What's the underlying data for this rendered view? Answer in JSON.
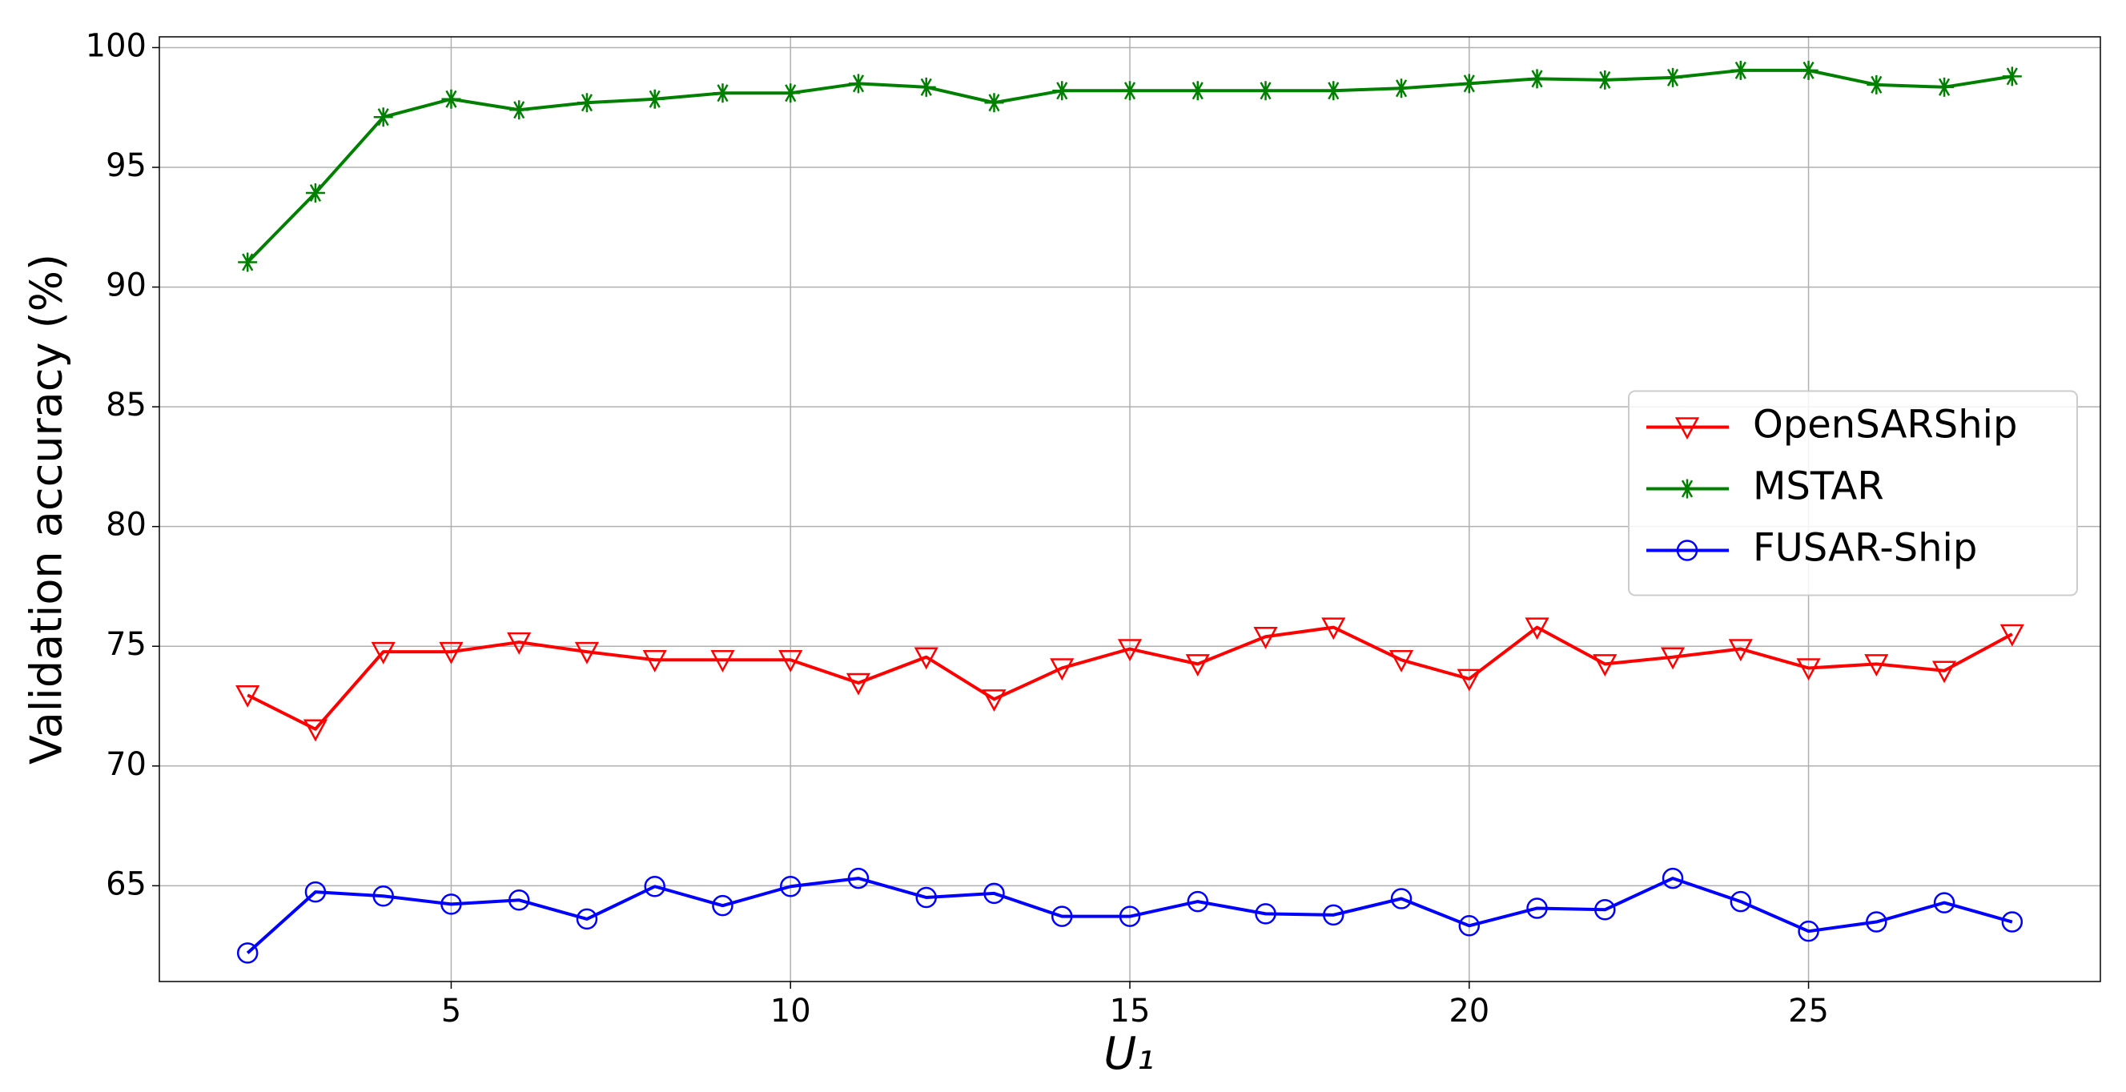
{
  "chart_data": {
    "type": "line",
    "x_label": "U₁",
    "y_label": "Validation accuracy (%)",
    "x": [
      2,
      3,
      4,
      5,
      6,
      7,
      8,
      9,
      10,
      11,
      12,
      13,
      14,
      15,
      16,
      17,
      18,
      19,
      20,
      21,
      22,
      23,
      24,
      25,
      26,
      27,
      28
    ],
    "series": [
      {
        "name": "OpenSARShip",
        "color": "#ff0000",
        "marker": "v",
        "values": [
          72.96,
          71.54,
          74.77,
          74.77,
          75.17,
          74.77,
          74.43,
          74.43,
          74.43,
          73.47,
          74.55,
          72.79,
          74.09,
          74.89,
          74.26,
          75.4,
          75.79,
          74.43,
          73.64,
          75.79,
          74.26,
          74.55,
          74.89,
          74.09,
          74.26,
          73.98,
          75.51
        ]
      },
      {
        "name": "MSTAR",
        "color": "#008000",
        "marker": "*",
        "values": [
          91.04,
          93.93,
          97.1,
          97.85,
          97.4,
          97.7,
          97.85,
          98.1,
          98.1,
          98.5,
          98.35,
          97.7,
          98.2,
          98.2,
          98.2,
          98.2,
          98.2,
          98.3,
          98.5,
          98.7,
          98.65,
          98.75,
          99.05,
          99.05,
          98.45,
          98.35,
          98.8
        ]
      },
      {
        "name": "FUSAR-Ship",
        "color": "#0000ff",
        "marker": "o",
        "values": [
          62.19,
          64.74,
          64.57,
          64.23,
          64.4,
          63.61,
          64.97,
          64.17,
          64.97,
          65.31,
          64.51,
          64.68,
          63.72,
          63.72,
          64.34,
          63.83,
          63.78,
          64.46,
          63.33,
          64.06,
          64.0,
          65.31,
          64.34,
          63.1,
          63.49,
          64.29,
          63.49
        ]
      }
    ],
    "xlim": [
      0.7,
      29.3
    ],
    "xticks": [
      5,
      10,
      15,
      20,
      25
    ],
    "ylim": [
      61.0,
      100.45
    ],
    "yticks": [
      65,
      70,
      75,
      80,
      85,
      90,
      95,
      100
    ],
    "grid": true,
    "legend": "center right"
  }
}
